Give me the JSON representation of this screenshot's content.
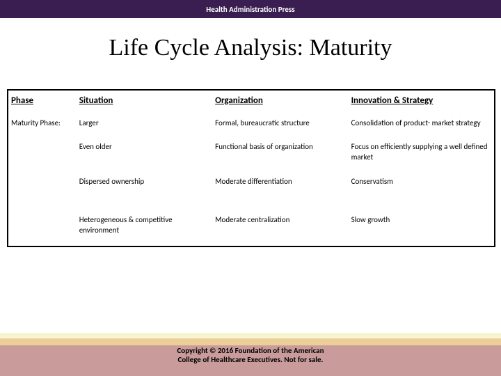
{
  "header": {
    "text": "Health Administration Press",
    "bg_color": "#3a1e52",
    "text_color": "#ffffff",
    "font_size": 11
  },
  "title": {
    "text": "Life Cycle Analysis: Maturity",
    "font_size": 34,
    "color": "#000000"
  },
  "table": {
    "border_color": "#000000",
    "header_font_size": 13,
    "cell_font_size": 11,
    "column_widths": [
      "14%",
      "28%",
      "28%",
      "30%"
    ],
    "columns": [
      "Phase",
      "Situation",
      "Organization",
      "Innovation & Strategy"
    ],
    "rows": [
      {
        "label": "Maturity Phase:",
        "cells": [
          "Larger",
          "Formal, bureaucratic structure",
          "Consolidation of product- market strategy"
        ]
      },
      {
        "label": "",
        "cells": [
          "Even older",
          "Functional basis of organization",
          "Focus on efficiently supplying a well defined market"
        ]
      },
      {
        "label": "",
        "cells": [
          "Dispersed ownership",
          "Moderate differentiation",
          "Conservatism"
        ]
      },
      {
        "label": "",
        "cells": [
          "Heterogeneous & competitive environment",
          "Moderate centralization",
          "Slow growth"
        ]
      }
    ]
  },
  "footer": {
    "copyright_line1": "Copyright © 2016 Foundation of the American",
    "copyright_line2": "College of Healthcare Executives. Not for sale.",
    "stripe_colors": [
      "#e9e27a",
      "#d88a2e",
      "#8a3aa0"
    ],
    "text_color": "#000000",
    "font_size": 11
  }
}
